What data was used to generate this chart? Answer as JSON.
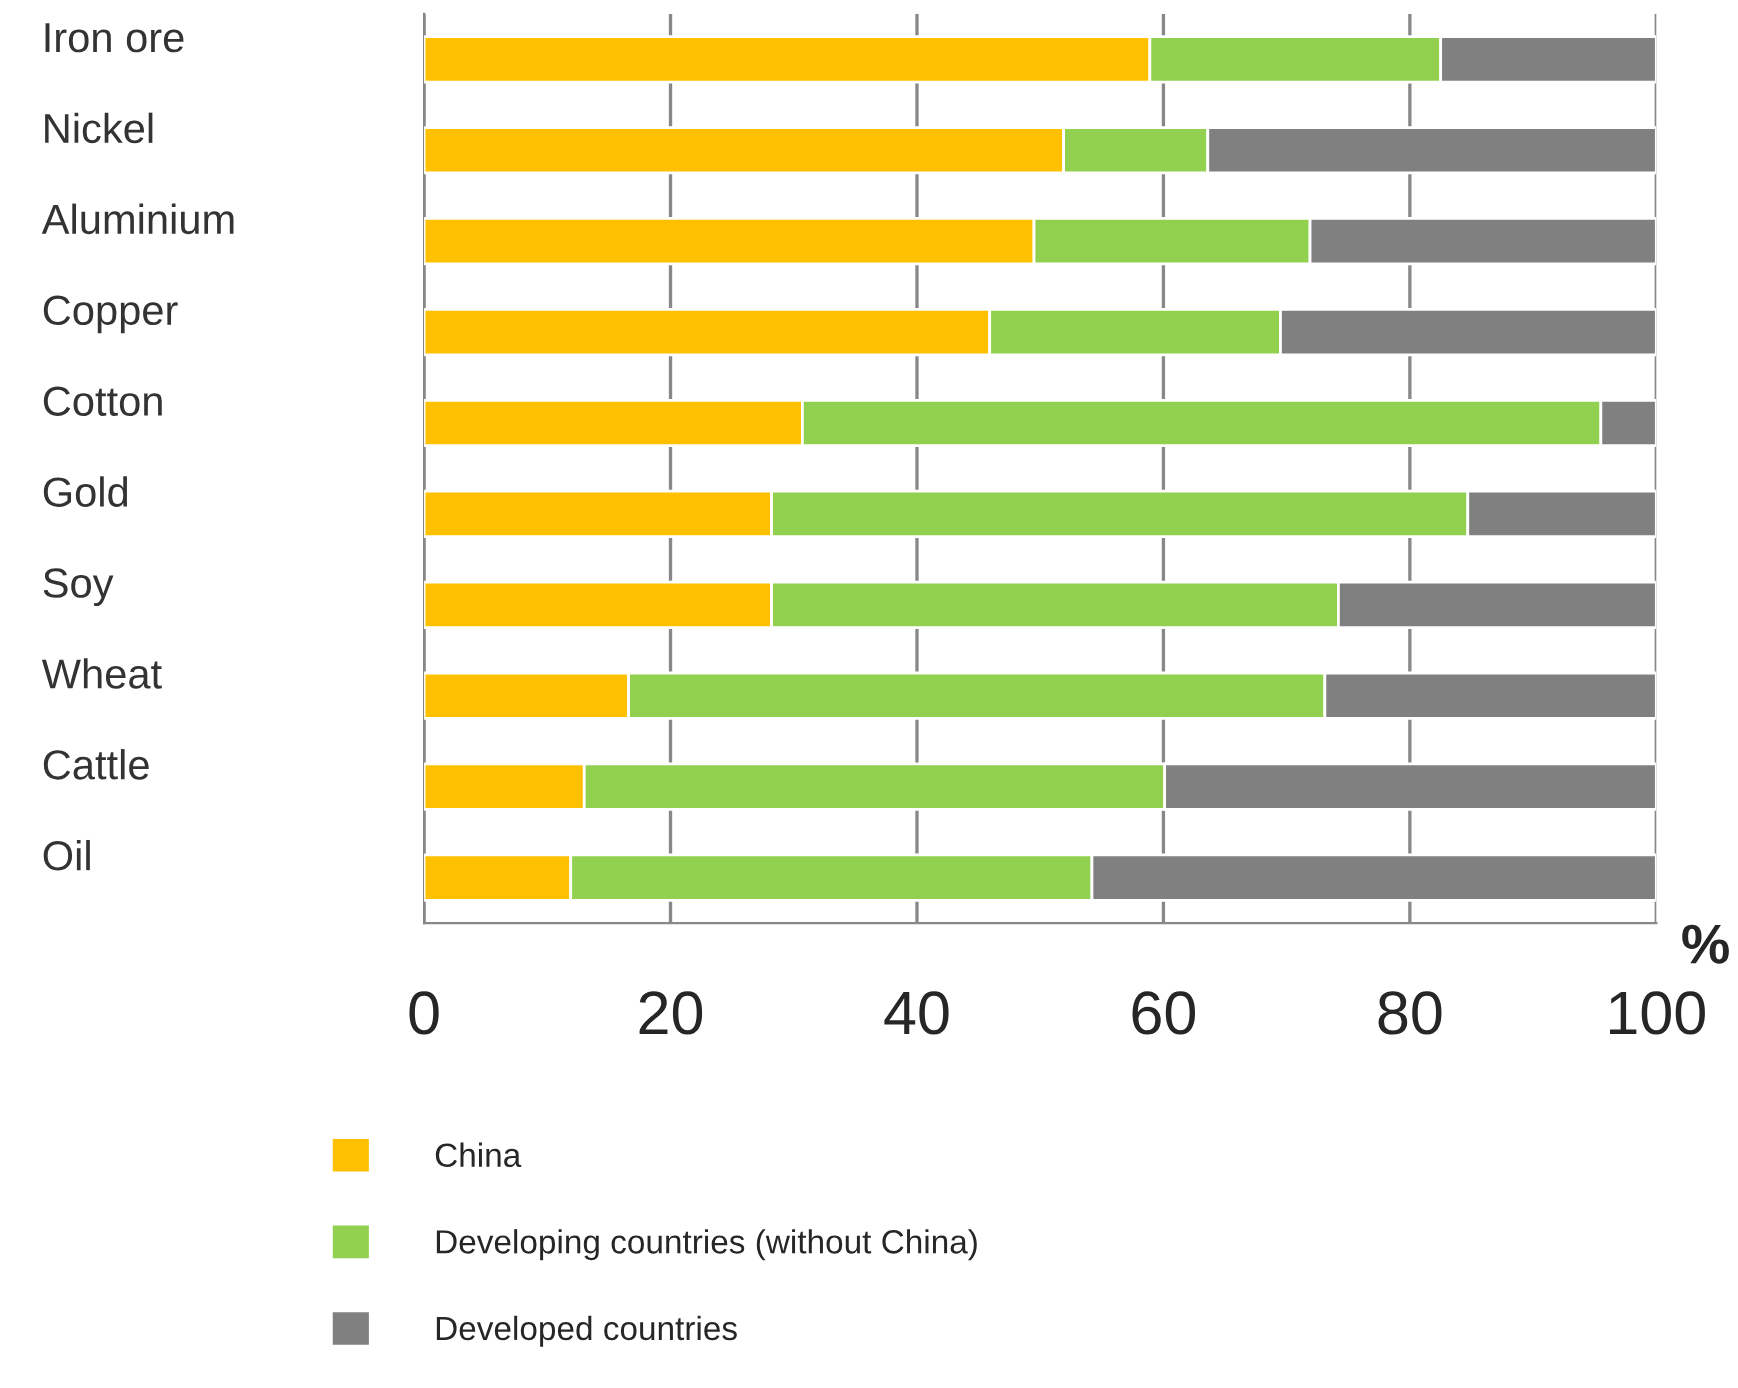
{
  "chart_data": {
    "type": "bar",
    "orientation": "horizontal",
    "stacked": true,
    "xlabel": "%",
    "categories": [
      "Iron ore",
      "Nickel",
      "Aluminium",
      "Copper",
      "Cotton",
      "Gold",
      "Soy",
      "Wheat",
      "Cattle",
      "Oil"
    ],
    "series": [
      {
        "name": "China",
        "color": "#ffc000",
        "values": [
          58.9,
          51.9,
          49.5,
          45.9,
          30.7,
          28.2,
          28.2,
          16.6,
          13.0,
          11.9
        ]
      },
      {
        "name": "Developing countries (without China)",
        "color": "#92d050",
        "values": [
          23.6,
          11.7,
          22.4,
          23.6,
          64.8,
          56.5,
          46.0,
          56.5,
          47.1,
          42.3
        ]
      },
      {
        "name": "Developed countries",
        "color": "#808080",
        "values": [
          17.5,
          36.4,
          28.1,
          30.5,
          4.5,
          15.3,
          25.8,
          26.9,
          39.9,
          45.8
        ]
      }
    ],
    "xlim": [
      0,
      100
    ],
    "xticks": [
      0,
      20,
      40,
      60,
      80,
      100
    ],
    "grid": "x",
    "legend": "bottom"
  }
}
